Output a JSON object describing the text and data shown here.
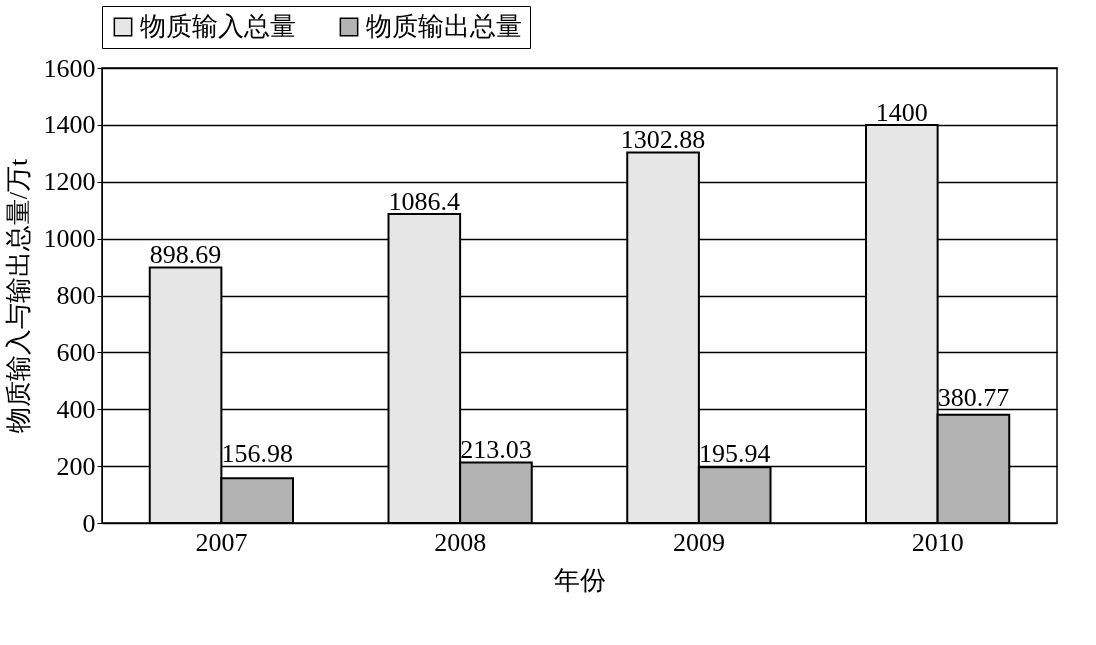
{
  "chart_data": {
    "type": "bar",
    "xlabel": "年份",
    "ylabel": "物质输入与输出总量/万t",
    "categories": [
      "2007",
      "2008",
      "2009",
      "2010"
    ],
    "series": [
      {
        "name": "物质输入总量",
        "color": "#e6e6e6",
        "values": [
          898.69,
          1086.4,
          1302.88,
          1400
        ]
      },
      {
        "name": "物质输出总量",
        "color": "#b3b3b3",
        "values": [
          156.98,
          213.03,
          195.94,
          380.77
        ]
      }
    ],
    "ylim": [
      0,
      1600
    ],
    "yticks": [
      0,
      200,
      400,
      600,
      800,
      1000,
      1200,
      1400,
      1600
    ],
    "grid": "y",
    "legend": "top",
    "data_labels": true
  }
}
